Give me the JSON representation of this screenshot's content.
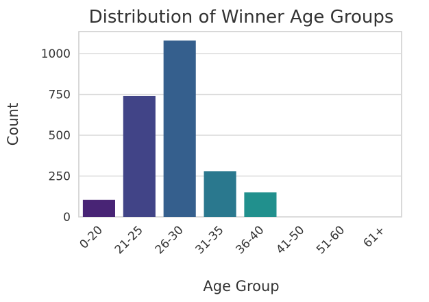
{
  "chart_data": {
    "type": "bar",
    "title": "Distribution of Winner Age Groups",
    "xlabel": "Age Group",
    "ylabel": "Count",
    "categories": [
      "0-20",
      "21-25",
      "26-30",
      "31-35",
      "36-40",
      "41-50",
      "51-60",
      "61+"
    ],
    "values": [
      105,
      740,
      1080,
      280,
      150,
      0,
      0,
      0
    ],
    "yticks": [
      0,
      250,
      500,
      750,
      1000
    ],
    "ylim": [
      0,
      1135
    ],
    "grid": true,
    "colors": [
      "#482475",
      "#414487",
      "#355f8d",
      "#2a788e",
      "#21908d",
      "#22a884",
      "#42be71",
      "#7ad151"
    ]
  }
}
